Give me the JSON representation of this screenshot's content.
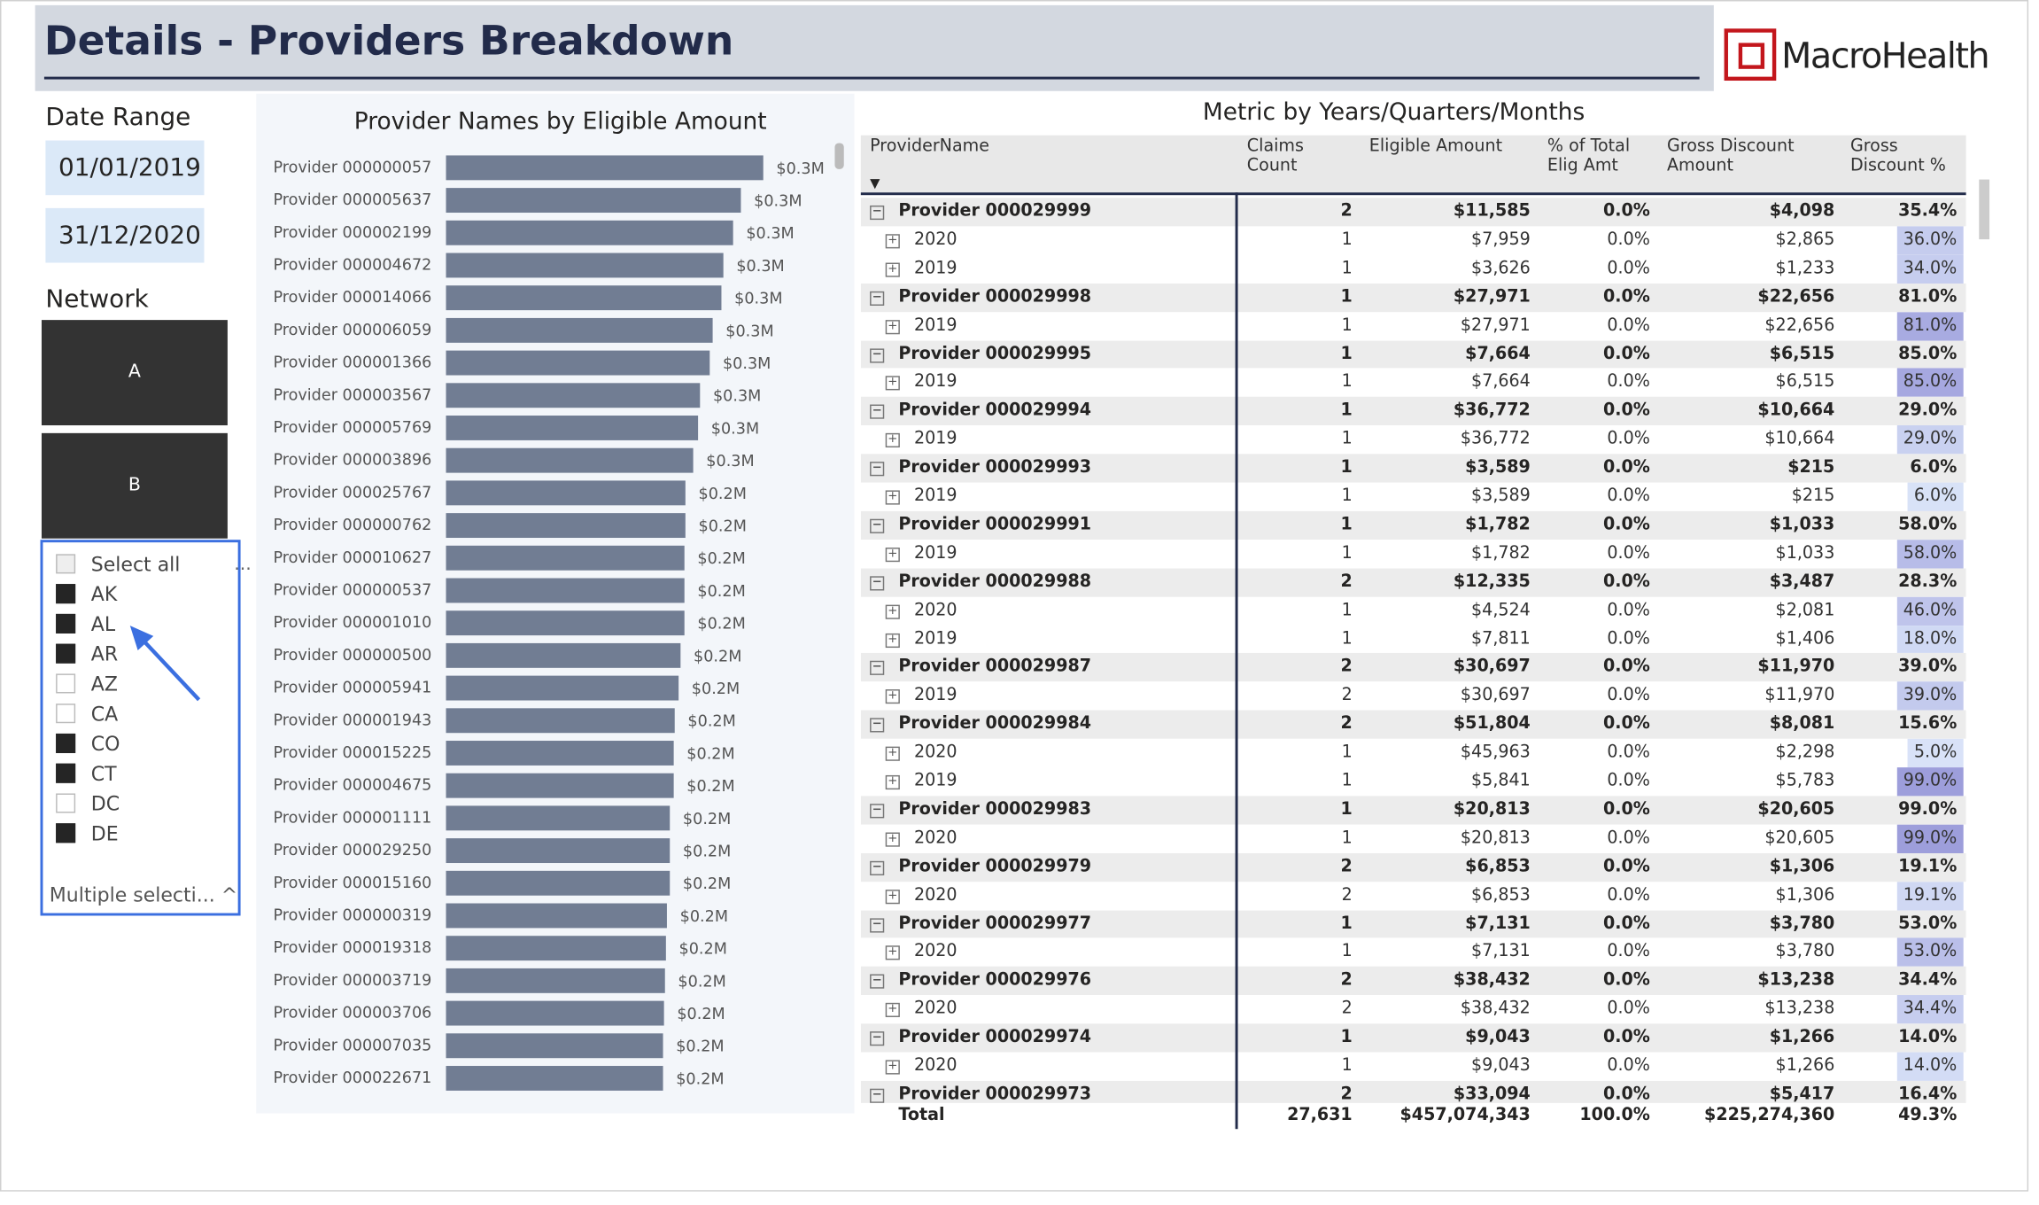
{
  "header": {
    "title": "Details - Providers Breakdown",
    "logo": "MacroHealth"
  },
  "filters": {
    "date_label": "Date Range",
    "date_from": "01/01/2019",
    "date_to": "31/12/2020",
    "network_label": "Network",
    "tiles": [
      "A",
      "B"
    ],
    "states": [
      {
        "label": "Select all",
        "checked": false
      },
      {
        "label": "AK",
        "checked": true
      },
      {
        "label": "AL",
        "checked": true
      },
      {
        "label": "AR",
        "checked": true
      },
      {
        "label": "AZ",
        "checked": false
      },
      {
        "label": "CA",
        "checked": false
      },
      {
        "label": "CO",
        "checked": true
      },
      {
        "label": "CT",
        "checked": true
      },
      {
        "label": "DC",
        "checked": false
      },
      {
        "label": "DE",
        "checked": true
      }
    ],
    "dropdown": "Multiple selecti..."
  },
  "chart_data": {
    "type": "bar",
    "orientation": "horizontal",
    "title": "Provider Names by Eligible Amount",
    "color": "#717d93",
    "categories": [
      "Provider 000000057",
      "Provider 000005637",
      "Provider 000002199",
      "Provider 000004672",
      "Provider 000014066",
      "Provider 000006059",
      "Provider 000001366",
      "Provider 000003567",
      "Provider 000005769",
      "Provider 000003896",
      "Provider 000025767",
      "Provider 000000762",
      "Provider 000010627",
      "Provider 000000537",
      "Provider 000001010",
      "Provider 000000500",
      "Provider 000005941",
      "Provider 000001943",
      "Provider 000015225",
      "Provider 000004675",
      "Provider 000001111",
      "Provider 000029250",
      "Provider 000015160",
      "Provider 000000319",
      "Provider 000019318",
      "Provider 000003719",
      "Provider 000003706",
      "Provider 000007035",
      "Provider 000022671"
    ],
    "values": [
      0.326,
      0.303,
      0.295,
      0.285,
      0.283,
      0.274,
      0.271,
      0.261,
      0.259,
      0.254,
      0.246,
      0.246,
      0.245,
      0.245,
      0.245,
      0.241,
      0.239,
      0.235,
      0.234,
      0.234,
      0.23,
      0.23,
      0.23,
      0.227,
      0.226,
      0.225,
      0.224,
      0.223,
      0.223
    ],
    "value_labels": [
      "$0.3M",
      "$0.3M",
      "$0.3M",
      "$0.3M",
      "$0.3M",
      "$0.3M",
      "$0.3M",
      "$0.3M",
      "$0.3M",
      "$0.3M",
      "$0.2M",
      "$0.2M",
      "$0.2M",
      "$0.2M",
      "$0.2M",
      "$0.2M",
      "$0.2M",
      "$0.2M",
      "$0.2M",
      "$0.2M",
      "$0.2M",
      "$0.2M",
      "$0.2M",
      "$0.2M",
      "$0.2M",
      "$0.2M",
      "$0.2M",
      "$0.2M",
      "$0.2M"
    ]
  },
  "table": {
    "title": "Metric by Years/Quarters/Months",
    "columns": [
      "ProviderName",
      "Claims Count",
      "Eligible Amount",
      "% of Total Elig Amt",
      "Gross Discount Amount",
      "Gross Discount %"
    ],
    "groups": [
      {
        "cells": [
          "Provider 000029999",
          "2",
          "$11,585",
          "0.0%",
          "$4,098",
          "35.4%"
        ],
        "children": [
          [
            "2020",
            "1",
            "$7,959",
            "0.0%",
            "$2,865",
            "36.0%"
          ],
          [
            "2019",
            "1",
            "$3,626",
            "0.0%",
            "$1,233",
            "34.0%"
          ]
        ]
      },
      {
        "cells": [
          "Provider 000029998",
          "1",
          "$27,971",
          "0.0%",
          "$22,656",
          "81.0%"
        ],
        "children": [
          [
            "2019",
            "1",
            "$27,971",
            "0.0%",
            "$22,656",
            "81.0%"
          ]
        ]
      },
      {
        "cells": [
          "Provider 000029995",
          "1",
          "$7,664",
          "0.0%",
          "$6,515",
          "85.0%"
        ],
        "children": [
          [
            "2019",
            "1",
            "$7,664",
            "0.0%",
            "$6,515",
            "85.0%"
          ]
        ]
      },
      {
        "cells": [
          "Provider 000029994",
          "1",
          "$36,772",
          "0.0%",
          "$10,664",
          "29.0%"
        ],
        "children": [
          [
            "2019",
            "1",
            "$36,772",
            "0.0%",
            "$10,664",
            "29.0%"
          ]
        ]
      },
      {
        "cells": [
          "Provider 000029993",
          "1",
          "$3,589",
          "0.0%",
          "$215",
          "6.0%"
        ],
        "children": [
          [
            "2019",
            "1",
            "$3,589",
            "0.0%",
            "$215",
            "6.0%"
          ]
        ]
      },
      {
        "cells": [
          "Provider 000029991",
          "1",
          "$1,782",
          "0.0%",
          "$1,033",
          "58.0%"
        ],
        "children": [
          [
            "2019",
            "1",
            "$1,782",
            "0.0%",
            "$1,033",
            "58.0%"
          ]
        ]
      },
      {
        "cells": [
          "Provider 000029988",
          "2",
          "$12,335",
          "0.0%",
          "$3,487",
          "28.3%"
        ],
        "children": [
          [
            "2020",
            "1",
            "$4,524",
            "0.0%",
            "$2,081",
            "46.0%"
          ],
          [
            "2019",
            "1",
            "$7,811",
            "0.0%",
            "$1,406",
            "18.0%"
          ]
        ]
      },
      {
        "cells": [
          "Provider 000029987",
          "2",
          "$30,697",
          "0.0%",
          "$11,970",
          "39.0%"
        ],
        "children": [
          [
            "2019",
            "2",
            "$30,697",
            "0.0%",
            "$11,970",
            "39.0%"
          ]
        ]
      },
      {
        "cells": [
          "Provider 000029984",
          "2",
          "$51,804",
          "0.0%",
          "$8,081",
          "15.6%"
        ],
        "children": [
          [
            "2020",
            "1",
            "$45,963",
            "0.0%",
            "$2,298",
            "5.0%"
          ],
          [
            "2019",
            "1",
            "$5,841",
            "0.0%",
            "$5,783",
            "99.0%"
          ]
        ]
      },
      {
        "cells": [
          "Provider 000029983",
          "1",
          "$20,813",
          "0.0%",
          "$20,605",
          "99.0%"
        ],
        "children": [
          [
            "2020",
            "1",
            "$20,813",
            "0.0%",
            "$20,605",
            "99.0%"
          ]
        ]
      },
      {
        "cells": [
          "Provider 000029979",
          "2",
          "$6,853",
          "0.0%",
          "$1,306",
          "19.1%"
        ],
        "children": [
          [
            "2020",
            "2",
            "$6,853",
            "0.0%",
            "$1,306",
            "19.1%"
          ]
        ]
      },
      {
        "cells": [
          "Provider 000029977",
          "1",
          "$7,131",
          "0.0%",
          "$3,780",
          "53.0%"
        ],
        "children": [
          [
            "2020",
            "1",
            "$7,131",
            "0.0%",
            "$3,780",
            "53.0%"
          ]
        ]
      },
      {
        "cells": [
          "Provider 000029976",
          "2",
          "$38,432",
          "0.0%",
          "$13,238",
          "34.4%"
        ],
        "children": [
          [
            "2020",
            "2",
            "$38,432",
            "0.0%",
            "$13,238",
            "34.4%"
          ]
        ]
      },
      {
        "cells": [
          "Provider 000029974",
          "1",
          "$9,043",
          "0.0%",
          "$1,266",
          "14.0%"
        ],
        "children": [
          [
            "2020",
            "1",
            "$9,043",
            "0.0%",
            "$1,266",
            "14.0%"
          ]
        ]
      },
      {
        "cells": [
          "Provider 000029973",
          "2",
          "$33,094",
          "0.0%",
          "$5,417",
          "16.4%"
        ],
        "children": []
      }
    ],
    "total": [
      "Total",
      "27,631",
      "$457,074,343",
      "100.0%",
      "$225,274,360",
      "49.3%"
    ]
  }
}
